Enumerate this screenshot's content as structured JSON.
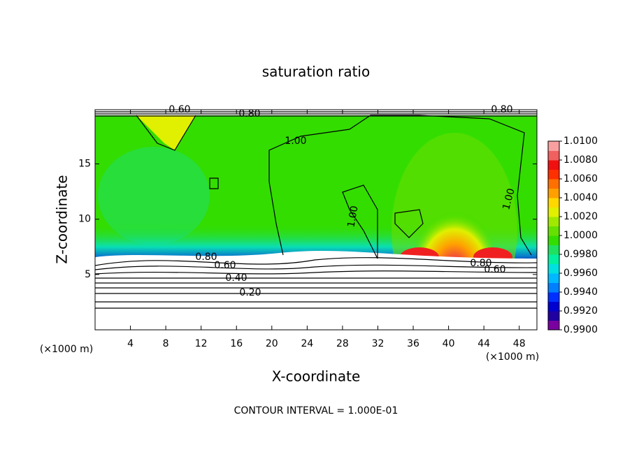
{
  "chart_data": {
    "type": "contour",
    "title": "saturation ratio",
    "xlabel": "X-coordinate",
    "ylabel": "Z-coordinate",
    "xunit": "(×1000 m)",
    "yunit": "(×1000 m)",
    "note": "CONTOUR INTERVAL = 1.000E-01",
    "xlim": [
      0,
      50
    ],
    "ylim": [
      0,
      19.9
    ],
    "xticks": [
      4,
      8,
      12,
      16,
      20,
      24,
      28,
      32,
      36,
      40,
      44,
      48
    ],
    "yticks": [
      5,
      10,
      15
    ],
    "contour_labels": [
      "0.60",
      "0.80",
      "0.80",
      "1.00",
      "1.00",
      "1.00",
      "0.80",
      "0.60",
      "0.40",
      "0.20",
      "0.80",
      "0.60"
    ],
    "colorbar": {
      "lim": [
        0.99,
        1.01
      ],
      "ticks": [
        {
          "value": 1.01,
          "label": "1.0100"
        },
        {
          "value": 1.008,
          "label": "1.0080"
        },
        {
          "value": 1.006,
          "label": "1.0060"
        },
        {
          "value": 1.004,
          "label": "1.0040"
        },
        {
          "value": 1.002,
          "label": "1.0020"
        },
        {
          "value": 1.0,
          "label": "1.0000"
        },
        {
          "value": 0.998,
          "label": "0.9980"
        },
        {
          "value": 0.996,
          "label": "0.9960"
        },
        {
          "value": 0.994,
          "label": "0.9940"
        },
        {
          "value": 0.992,
          "label": "0.9920"
        },
        {
          "value": 0.99,
          "label": "0.9900"
        }
      ],
      "colors": [
        "#7a00a0",
        "#2000a0",
        "#0000d0",
        "#0030ff",
        "#0080ff",
        "#00b8ff",
        "#00e0e0",
        "#00f0a0",
        "#20e060",
        "#33dd00",
        "#66e000",
        "#a0e800",
        "#e0f000",
        "#ffd800",
        "#ffa000",
        "#ff7000",
        "#ff3000",
        "#f01010",
        "#f06060",
        "#f8a0a0"
      ]
    }
  }
}
